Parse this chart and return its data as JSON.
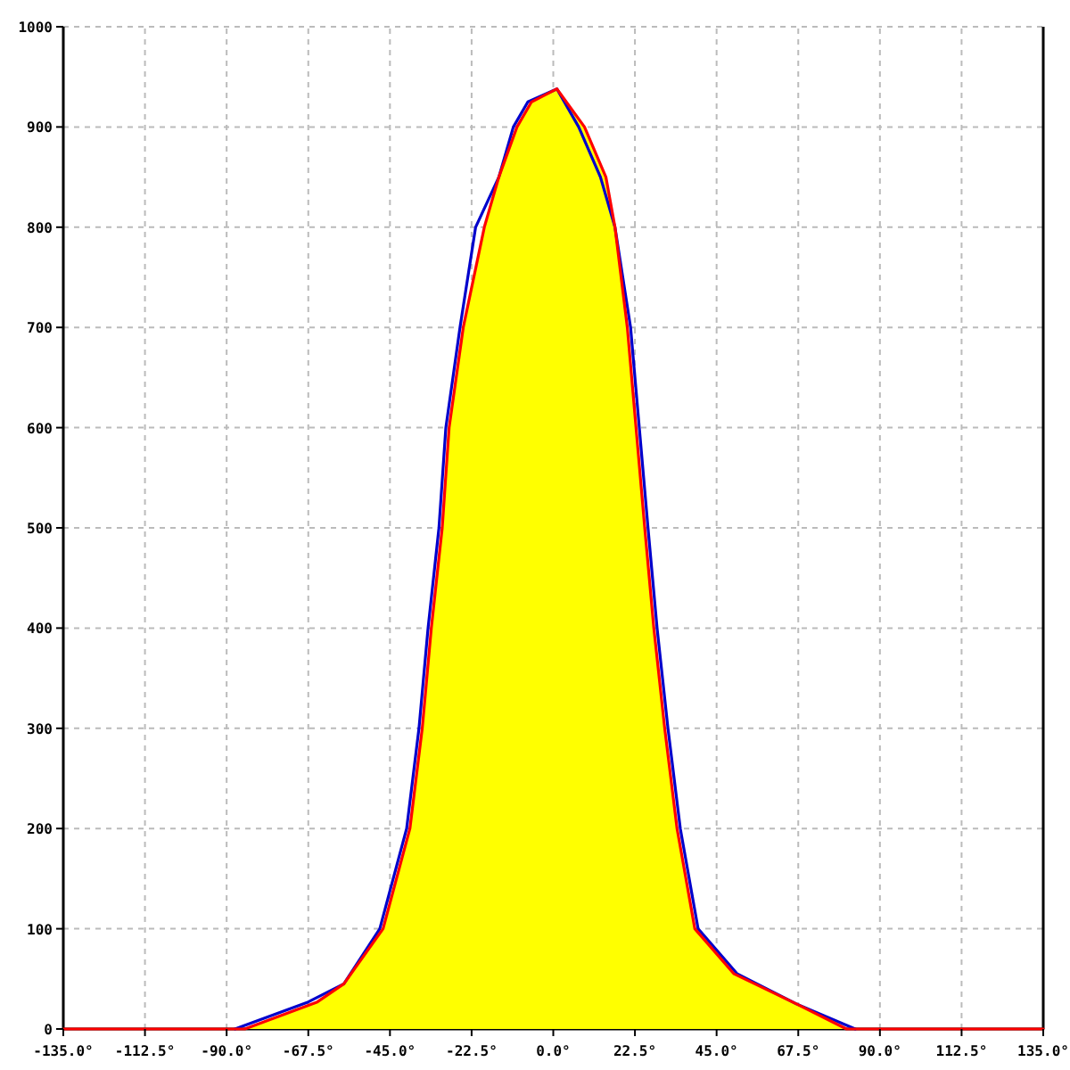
{
  "chart_data": {
    "type": "line",
    "xlim": [
      -135,
      135
    ],
    "ylim": [
      0,
      1000
    ],
    "xticks": [
      {
        "value": -135,
        "label": "-135.0°"
      },
      {
        "value": -112.5,
        "label": "-112.5°"
      },
      {
        "value": -90,
        "label": "-90.0°"
      },
      {
        "value": -67.5,
        "label": "-67.5°"
      },
      {
        "value": -45,
        "label": "-45.0°"
      },
      {
        "value": -22.5,
        "label": "-22.5°"
      },
      {
        "value": 0,
        "label": "0.0°"
      },
      {
        "value": 22.5,
        "label": "22.5°"
      },
      {
        "value": 45,
        "label": "45.0°"
      },
      {
        "value": 67.5,
        "label": "67.5°"
      },
      {
        "value": 90,
        "label": "90.0°"
      },
      {
        "value": 112.5,
        "label": "112.5°"
      },
      {
        "value": 135,
        "label": "135.0°"
      }
    ],
    "yticks": [
      0,
      100,
      200,
      300,
      400,
      500,
      600,
      700,
      800,
      900,
      1000
    ],
    "grid": true,
    "marker": "none",
    "line_style": "solid",
    "series": [
      {
        "type": "area",
        "color": "#ffff00",
        "x": [
          -85,
          -65,
          -57.7,
          -46.9,
          -39.5,
          -36.1,
          -33.6,
          -30.6,
          -28.7,
          -24.8,
          -19,
          -15,
          -10,
          -6,
          1,
          8.6,
          14.5,
          17,
          20.4,
          22.8,
          25.2,
          27.7,
          30.7,
          34.1,
          39,
          49.8,
          67,
          80.8
        ],
        "values": [
          0,
          27,
          45,
          100,
          200,
          300,
          400,
          500,
          600,
          700,
          800,
          850,
          900,
          925,
          938,
          900,
          850,
          800,
          700,
          600,
          500,
          400,
          300,
          200,
          100,
          55,
          25,
          0
        ]
      },
      {
        "color": "#0000cc",
        "x": [
          -87.7,
          -67.5,
          -57.7,
          -47.8,
          -40.4,
          -37,
          -34.5,
          -31.5,
          -29.6,
          -25.7,
          -21.4,
          -15,
          -11,
          -7,
          1,
          7,
          13,
          17,
          21.3,
          23.7,
          26.1,
          28.6,
          31.6,
          35,
          39.9,
          50.7,
          67,
          83.2
        ],
        "values": [
          0,
          27,
          45,
          100,
          200,
          300,
          400,
          500,
          600,
          700,
          800,
          850,
          900,
          925,
          938,
          900,
          850,
          800,
          700,
          600,
          500,
          400,
          300,
          200,
          100,
          55,
          25,
          0
        ]
      },
      {
        "color": "#ff0000",
        "x": [
          -135,
          -85,
          -65,
          -57.7,
          -46.9,
          -39.5,
          -36.1,
          -33.6,
          -30.6,
          -28.7,
          -24.8,
          -19,
          -15,
          -10,
          -6,
          1,
          8.6,
          14.5,
          17,
          20.4,
          22.8,
          25.2,
          27.7,
          30.7,
          34.1,
          39,
          49.8,
          67,
          80.8,
          135
        ],
        "values": [
          0,
          0,
          27,
          45,
          100,
          200,
          300,
          400,
          500,
          600,
          700,
          800,
          850,
          900,
          925,
          938,
          900,
          850,
          800,
          700,
          600,
          500,
          400,
          300,
          200,
          100,
          55,
          25,
          0,
          0
        ]
      }
    ]
  }
}
